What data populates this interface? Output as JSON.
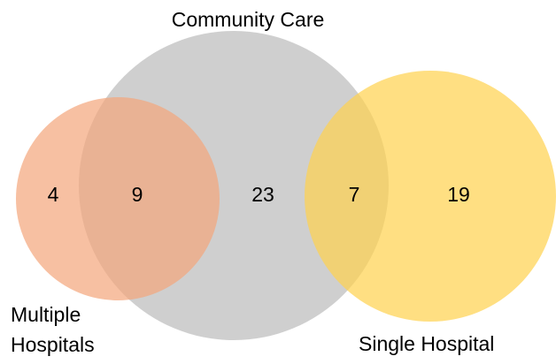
{
  "sets": [
    {
      "label_lines": [
        "Community Care"
      ]
    },
    {
      "label_lines": [
        "Multiple",
        "Hospitals"
      ]
    },
    {
      "label_lines": [
        "Single Hospital"
      ]
    }
  ],
  "regions": [
    "4",
    "9",
    "23",
    "7",
    "19"
  ]
}
